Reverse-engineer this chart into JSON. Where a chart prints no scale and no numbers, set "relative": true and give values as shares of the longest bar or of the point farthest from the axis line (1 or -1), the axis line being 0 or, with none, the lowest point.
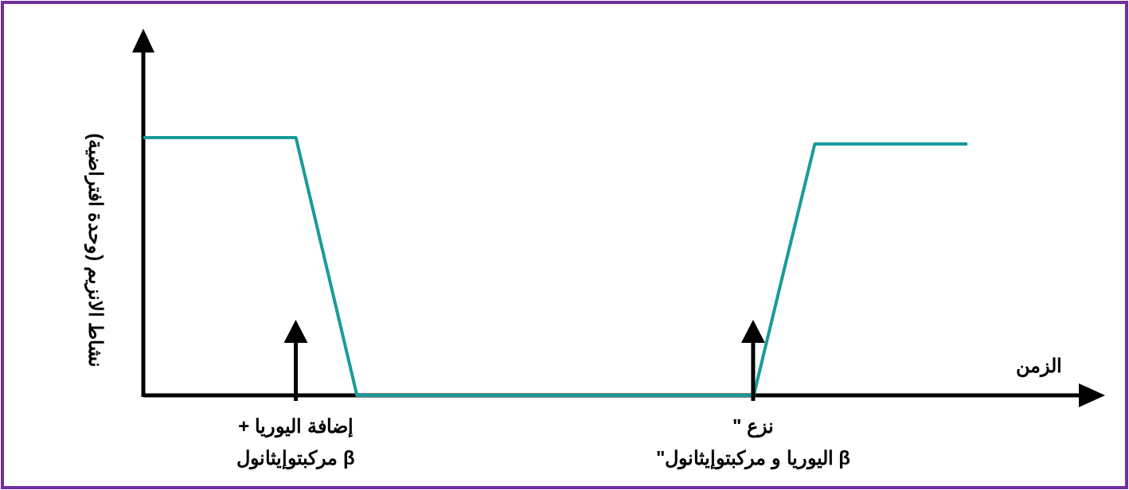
{
  "chart_data": {
    "type": "line",
    "relative": true,
    "xlabel": "الزمن",
    "ylabel": "نشاط الانزيم (وحدة افتراضية)",
    "categories": [
      null,
      null,
      null,
      null,
      null,
      null,
      null,
      null,
      null,
      null,
      null,
      null,
      null,
      null,
      null,
      null,
      null,
      null,
      null,
      null,
      null,
      null,
      null,
      null,
      null,
      null,
      null,
      null
    ],
    "line_style": "solid",
    "series": [
      {
        "color": "#1a9a9a",
        "values": [
          1,
          1,
          1,
          1,
          1,
          1,
          0.5,
          0,
          0,
          0,
          0,
          0,
          0,
          0,
          0,
          0,
          0,
          0,
          0,
          0,
          0,
          0.49,
          0.975,
          0.975,
          0.975,
          0.975,
          0.975,
          0.975
        ]
      }
    ],
    "annotations": [
      "إضافة اليوريا +\nβ مركبتوإيثانول",
      "نزع \"\nβ اليوريا و مركبتوإيثانول\""
    ]
  }
}
